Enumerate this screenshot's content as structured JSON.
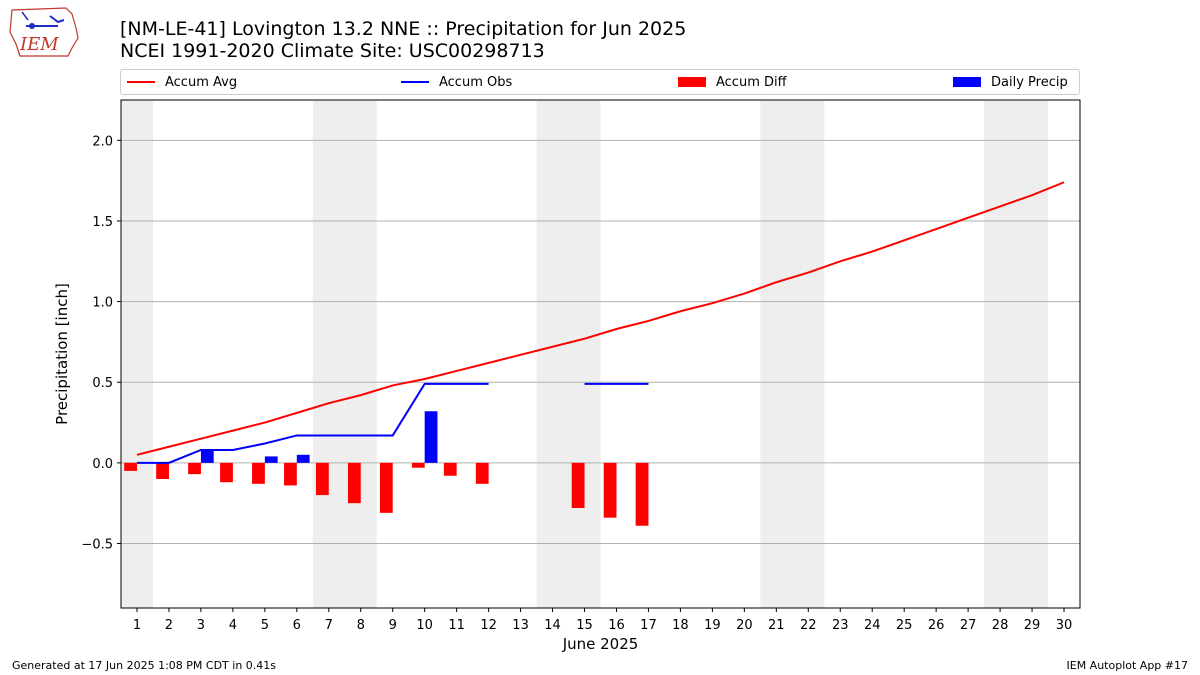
{
  "header": {
    "title_line1": "[NM-LE-41] Lovington 13.2 NNE :: Precipitation for Jun 2025",
    "title_line2": "NCEI 1991-2020 Climate Site: USC00298713"
  },
  "logo": {
    "text": "IEM"
  },
  "footer": {
    "left": "Generated at 17 Jun 2025 1:08 PM CDT in 0.41s",
    "right": "IEM Autoplot App #17"
  },
  "chart_data": {
    "type": "bar",
    "title": "",
    "xlabel": "June 2025",
    "ylabel": "Precipitation [inch]",
    "xlim": [
      0.5,
      30.5
    ],
    "ylim": [
      -0.9,
      2.25
    ],
    "yticks": [
      -0.5,
      0.0,
      0.5,
      1.0,
      1.5,
      2.0
    ],
    "ytick_labels": [
      "−0.5",
      "0.0",
      "0.5",
      "1.0",
      "1.5",
      "2.0"
    ],
    "days": [
      1,
      2,
      3,
      4,
      5,
      6,
      7,
      8,
      9,
      10,
      11,
      12,
      13,
      14,
      15,
      16,
      17,
      18,
      19,
      20,
      21,
      22,
      23,
      24,
      25,
      26,
      27,
      28,
      29,
      30
    ],
    "weekend_days": [
      1,
      7,
      8,
      14,
      15,
      21,
      22,
      28,
      29
    ],
    "grid": "horizontal",
    "legend_position": "top",
    "colors": {
      "accum_avg": "#ff0000",
      "accum_obs": "#0000ff",
      "accum_diff": "#ff0000",
      "daily_precip": "#0000ff",
      "weekend_band": "#eeeeee",
      "grid": "#b0b0b0"
    },
    "series": [
      {
        "name": "Accum Avg",
        "kind": "line",
        "values": [
          0.05,
          0.1,
          0.15,
          0.2,
          0.25,
          0.31,
          0.37,
          0.42,
          0.48,
          0.52,
          0.57,
          0.62,
          0.67,
          0.72,
          0.77,
          0.83,
          0.88,
          0.94,
          0.99,
          1.05,
          1.12,
          1.18,
          1.25,
          1.31,
          1.38,
          1.45,
          1.52,
          1.59,
          1.66,
          1.74
        ]
      },
      {
        "name": "Accum Obs",
        "kind": "line",
        "values": [
          0.0,
          0.0,
          0.08,
          0.08,
          0.12,
          0.17,
          0.17,
          0.17,
          0.17,
          0.49,
          0.49,
          0.49,
          null,
          null,
          0.49,
          0.49,
          0.49,
          null,
          null,
          null,
          null,
          null,
          null,
          null,
          null,
          null,
          null,
          null,
          null,
          null
        ]
      },
      {
        "name": "Accum Diff",
        "kind": "bar",
        "offset": -0.2,
        "values": [
          -0.05,
          -0.1,
          -0.07,
          -0.12,
          -0.13,
          -0.14,
          -0.2,
          -0.25,
          -0.31,
          -0.03,
          -0.08,
          -0.13,
          null,
          null,
          -0.28,
          -0.34,
          -0.39,
          null,
          null,
          null,
          null,
          null,
          null,
          null,
          null,
          null,
          null,
          null,
          null,
          null
        ]
      },
      {
        "name": "Daily Precip",
        "kind": "bar",
        "offset": 0.2,
        "values": [
          0,
          0,
          0.08,
          0,
          0.04,
          0.05,
          0,
          0,
          0,
          0.32,
          0,
          0,
          null,
          null,
          0,
          0,
          0,
          null,
          null,
          null,
          null,
          null,
          null,
          null,
          null,
          null,
          null,
          null,
          null,
          null
        ]
      }
    ]
  }
}
